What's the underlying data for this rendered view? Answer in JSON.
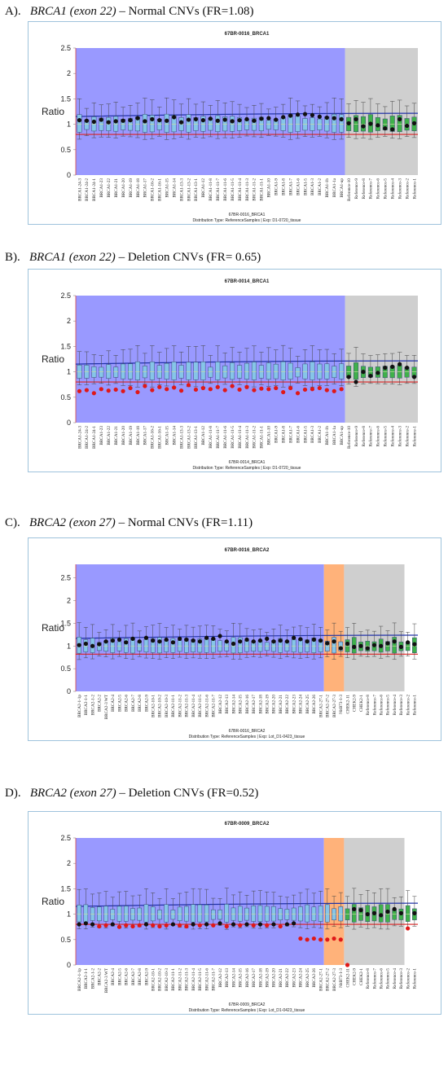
{
  "panels": [
    {
      "letter": "A).",
      "gene": "BRCA1 (exon 22)",
      "desc": " – Normal CNVs (FR=1.08)",
      "chart_data": {
        "type": "box",
        "title": "67BR-0016_BRCA1",
        "footer_name": "67BR-0016_BRCA1",
        "footer_dist": "Distribution Type: ReferenceSamples | Exp: D1-0720_tissue",
        "ylabel": "Ratio",
        "ylim": [
          0,
          2.5
        ],
        "yticks": [
          "0",
          "0.5",
          "1",
          "1.5",
          "2",
          "2.5"
        ],
        "upper_threshold": 1.2,
        "lower_threshold": 0.8,
        "regions": [
          {
            "from": 0,
            "to": 37,
            "color": "#9999ff"
          },
          {
            "from": 37,
            "to": 49,
            "color": "#cfcfcf"
          }
        ],
        "categories": [
          "BRCA1-24-3",
          "BRCA1-24-2",
          "BRCA1-24-1",
          "BRCA1-23",
          "BRCA1-22",
          "BRCA1-21",
          "BRCA1-20",
          "BRCA1-19",
          "BRCA1-18",
          "BRCA1-17",
          "BRCA1-16-2",
          "BRCA1-16-1",
          "BRCA1-15",
          "BRCA1-14",
          "BRCA1-13-3",
          "BRCA1-13-2",
          "BRCA1-13-1",
          "BRCA1-12",
          "BRCA1-11-8",
          "BRCA1-11-7",
          "BRCA1-11-6",
          "BRCA1-11-5",
          "BRCA1-11-4",
          "BRCA1-11-3",
          "BRCA1-11-2",
          "BRCA1-11-1",
          "BRCA1-10",
          "BRCA1-9",
          "BRCA1-8",
          "BRCA1-7",
          "BRCA1-6",
          "BRCA1-5",
          "BRCA1-3",
          "BRCA1-2",
          "BRCA1-1b",
          "BRCA1-1a",
          "BRCA1-up",
          "Reference-10",
          "Reference-9",
          "Reference-8",
          "Reference-7",
          "Reference-6",
          "Reference-5",
          "Reference-4",
          "Reference-3",
          "Reference-2",
          "Reference-1"
        ],
        "sample_values": [
          1.08,
          1.07,
          1.05,
          1.09,
          1.04,
          1.06,
          1.07,
          1.08,
          1.12,
          1.06,
          1.1,
          1.08,
          1.07,
          1.14,
          1.04,
          1.09,
          1.1,
          1.08,
          1.11,
          1.07,
          1.09,
          1.06,
          1.08,
          1.1,
          1.07,
          1.11,
          1.12,
          1.09,
          1.14,
          1.17,
          1.19,
          1.2,
          1.18,
          1.15,
          1.13,
          1.12,
          1.1,
          1.02,
          1.1,
          0.96,
          1.01,
          0.98,
          0.92,
          0.9,
          1.1,
          0.97,
          1.02
        ],
        "sample_color_groups": {
          "black": [
            0,
            36
          ],
          "red_markers": []
        },
        "box_colors": {
          "gene": "#86c5e8",
          "reference": "#3fb14a",
          "checkpoint": "#86c5e8"
        }
      }
    },
    {
      "letter": "B).",
      "gene": "BRCA1 (exon 22)",
      "desc": " – Deletion CNVs (FR= 0.65)",
      "chart_data": {
        "type": "box",
        "title": "67BR-0014_BRCA1",
        "footer_name": "67BR-0014_BRCA1",
        "footer_dist": "Distribution Type: ReferenceSamples | Exp: D1-0720_tissue",
        "ylabel": "Ratio",
        "ylim": [
          0,
          2.5
        ],
        "yticks": [
          "0",
          "0.5",
          "1",
          "1.5",
          "2",
          "2.5"
        ],
        "upper_threshold": 1.2,
        "lower_threshold": 0.8,
        "regions": [
          {
            "from": 0,
            "to": 37,
            "color": "#9999ff"
          },
          {
            "from": 37,
            "to": 49,
            "color": "#cfcfcf"
          }
        ],
        "categories": [
          "BRCA1-24-3",
          "BRCA1-24-2",
          "BRCA1-24-1",
          "BRCA1-23",
          "BRCA1-22",
          "BRCA1-21",
          "BRCA1-20",
          "BRCA1-19",
          "BRCA1-18",
          "BRCA1-17",
          "BRCA1-16-2",
          "BRCA1-16-1",
          "BRCA1-15",
          "BRCA1-14",
          "BRCA1-13-3",
          "BRCA1-13-2",
          "BRCA1-13-1",
          "BRCA1-12",
          "BRCA1-11-8",
          "BRCA1-11-7",
          "BRCA1-11-6",
          "BRCA1-11-5",
          "BRCA1-11-4",
          "BRCA1-11-3",
          "BRCA1-11-2",
          "BRCA1-11-1",
          "BRCA1-10",
          "BRCA1-9",
          "BRCA1-8",
          "BRCA1-7",
          "BRCA1-6",
          "BRCA1-5",
          "BRCA1-3",
          "BRCA1-2",
          "BRCA1-1b",
          "BRCA1-1a",
          "BRCA1-up",
          "Reference-10",
          "Reference-9",
          "Reference-8",
          "Reference-7",
          "Reference-6",
          "Reference-5",
          "Reference-4",
          "Reference-3",
          "Reference-2",
          "Reference-1"
        ],
        "sample_values": [
          0.62,
          0.64,
          0.58,
          0.66,
          0.63,
          0.65,
          0.62,
          0.68,
          0.6,
          0.72,
          0.64,
          0.7,
          0.66,
          0.69,
          0.63,
          0.74,
          0.65,
          0.68,
          0.66,
          0.7,
          0.64,
          0.72,
          0.65,
          0.7,
          0.64,
          0.67,
          0.66,
          0.68,
          0.6,
          0.68,
          0.58,
          0.65,
          0.66,
          0.68,
          0.64,
          0.62,
          0.66,
          0.9,
          0.8,
          1.0,
          0.92,
          0.98,
          1.08,
          1.1,
          1.15,
          1.08,
          0.9
        ],
        "box_colors": {
          "gene": "#86c5e8",
          "reference": "#3fb14a",
          "checkpoint": "#86c5e8"
        }
      }
    },
    {
      "letter": "C).",
      "gene": "BRCA2 (exon 27)",
      "desc": " – Normal CNVs (FR=1.11)",
      "chart_data": {
        "type": "box",
        "title": "67BR-0016_BRCA2",
        "footer_name": "67BR-0016_BRCA2",
        "footer_dist": "Distribution Type: ReferenceSamples | Exp: Lot_D1-0423_tissue",
        "ylabel": "Ratio",
        "ylim": [
          0,
          2.8
        ],
        "yticks": [
          "0",
          "0.5",
          "1",
          "1.5",
          "2",
          "2.5"
        ],
        "upper_threshold": 1.22,
        "lower_threshold": 0.82,
        "regions": [
          {
            "from": 0,
            "to": 37,
            "color": "#9999ff"
          },
          {
            "from": 37,
            "to": 40,
            "color": "#ffb27a"
          },
          {
            "from": 40,
            "to": 49,
            "color": "#cfcfcf"
          }
        ],
        "categories": [
          "BRCA2-1-1p",
          "BRCA2-1-1",
          "BRCA2-1-2",
          "BRCA2-2",
          "BRCA2-3 WT",
          "BRCA2-4",
          "BRCA2-5",
          "BRCA2-6",
          "BRCA2-7",
          "BRCA2-8",
          "BRCA2-9",
          "BRCA2-10-1",
          "BRCA2-10-2",
          "BRCA2-10-3",
          "BRCA2-11-1",
          "BRCA2-11-2",
          "BRCA2-11-3",
          "BRCA2-11-4",
          "BRCA2-11-5",
          "BRCA2-11-6",
          "BRCA2-11-7",
          "BRCA2-12",
          "BRCA2-13",
          "BRCA2-14",
          "BRCA2-15",
          "BRCA2-16",
          "BRCA2-17",
          "BRCA2-18",
          "BRCA2-19",
          "BRCA2-20",
          "BRCA2-21",
          "BRCA2-22",
          "BRCA2-23",
          "BRCA2-24",
          "BRCA2-25",
          "BRCA2-26",
          "BRCA2-27-1",
          "BRCA2-27-2",
          "BRCA2-27-3",
          "NitB73-1-3",
          "CHEK2-11",
          "CHEK2-9",
          "CHEK2-1",
          "Reference-8",
          "Reference-7",
          "Reference-6",
          "Reference-5",
          "Reference-4",
          "Reference-3",
          "Reference-2",
          "Reference-1"
        ],
        "sample_values": [
          1.02,
          1.05,
          1.0,
          1.04,
          1.1,
          1.12,
          1.14,
          1.08,
          1.16,
          1.1,
          1.18,
          1.12,
          1.1,
          1.14,
          1.08,
          1.16,
          1.14,
          1.12,
          1.1,
          1.18,
          1.16,
          1.22,
          1.1,
          1.05,
          1.1,
          1.14,
          1.1,
          1.12,
          1.16,
          1.1,
          1.12,
          1.1,
          1.18,
          1.15,
          1.1,
          1.14,
          1.12,
          1.06,
          1.1,
          0.95,
          1.05,
          0.98,
          1.0,
          0.95,
          1.02,
          1.0,
          1.06,
          1.1,
          0.98,
          1.08,
          1.04
        ],
        "box_colors": {
          "gene": "#86c5e8",
          "reference": "#3fb14a",
          "checkpoint": "#86c5e8"
        }
      }
    },
    {
      "letter": "D).",
      "gene": "BRCA2 (exon 27)",
      "desc": " – Deletion CNVs (FR=0.52)",
      "chart_data": {
        "type": "box",
        "title": "67BR-0009_BRCA2",
        "footer_name": "67BR-0009_BRCA2",
        "footer_dist": "Distribution Type: ReferenceSamples | Exp: Lot_D1-0423_tissue",
        "ylabel": "Ratio",
        "ylim": [
          0,
          2.5
        ],
        "yticks": [
          "0",
          "0.5",
          "1",
          "1.5",
          "2",
          "2.5"
        ],
        "upper_threshold": 1.2,
        "lower_threshold": 0.8,
        "regions": [
          {
            "from": 0,
            "to": 37,
            "color": "#9999ff"
          },
          {
            "from": 37,
            "to": 40,
            "color": "#ffb27a"
          },
          {
            "from": 40,
            "to": 49,
            "color": "#cfcfcf"
          }
        ],
        "categories": [
          "BRCA2-1-1p",
          "BRCA2-1-1",
          "BRCA2-1-2",
          "BRCA2-2",
          "BRCA2-3 WT",
          "BRCA2-4",
          "BRCA2-5",
          "BRCA2-6",
          "BRCA2-7",
          "BRCA2-8",
          "BRCA2-9",
          "BRCA2-10-1",
          "BRCA2-10-2",
          "BRCA2-10-3",
          "BRCA2-11-1",
          "BRCA2-11-2",
          "BRCA2-11-3",
          "BRCA2-11-4",
          "BRCA2-11-5",
          "BRCA2-11-6",
          "BRCA2-11-7",
          "BRCA2-12",
          "BRCA2-13",
          "BRCA2-14",
          "BRCA2-15",
          "BRCA2-16",
          "BRCA2-17",
          "BRCA2-18",
          "BRCA2-19",
          "BRCA2-20",
          "BRCA2-21",
          "BRCA2-22",
          "BRCA2-23",
          "BRCA2-24",
          "BRCA2-25",
          "BRCA2-26",
          "BRCA2-27-1",
          "BRCA2-27-2",
          "BRCA2-27-3",
          "NitB73-1-3",
          "CHEK2-11",
          "CHEK2-9",
          "CHEK2-1",
          "Reference-8",
          "Reference-7",
          "Reference-6",
          "Reference-5",
          "Reference-4",
          "Reference-3",
          "Reference-2",
          "Reference-1"
        ],
        "sample_values": [
          0.8,
          0.82,
          0.8,
          0.76,
          0.78,
          0.8,
          0.75,
          0.78,
          0.76,
          0.78,
          0.8,
          0.78,
          0.76,
          0.78,
          0.8,
          0.78,
          0.76,
          0.8,
          0.78,
          0.8,
          0.78,
          0.82,
          0.76,
          0.8,
          0.78,
          0.8,
          0.78,
          0.8,
          0.78,
          0.8,
          0.76,
          0.8,
          0.82,
          0.52,
          0.5,
          0.52,
          0.5,
          0.5,
          0.52,
          0.5,
          0.0,
          1.1,
          1.08,
          1.0,
          1.02,
          0.98,
          1.05,
          1.1,
          1.02,
          0.72,
          1.02
        ],
        "box_colors": {
          "gene": "#86c5e8",
          "reference": "#3fb14a",
          "checkpoint": "#86c5e8"
        }
      }
    }
  ]
}
